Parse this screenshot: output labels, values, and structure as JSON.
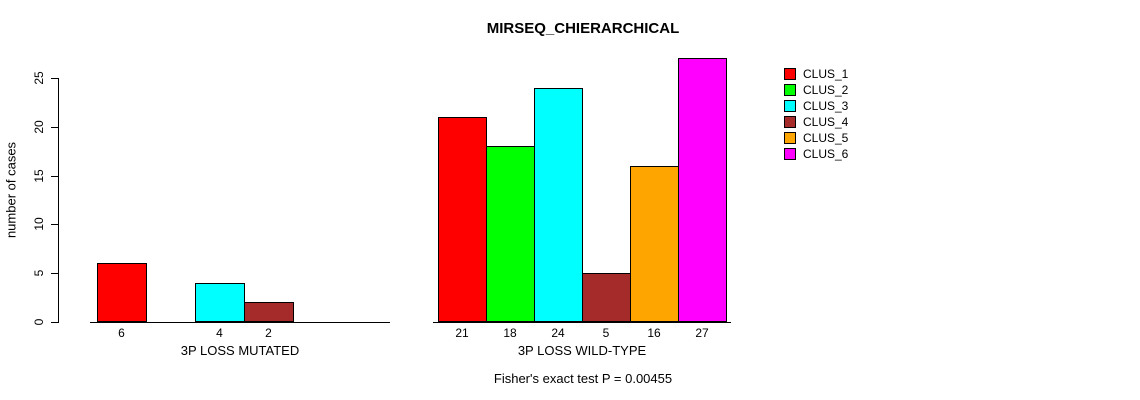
{
  "chart_data": {
    "type": "bar",
    "title": "MIRSEQ_CHIERARCHICAL",
    "ylabel": "number of cases",
    "xlabel": "",
    "ylim": [
      0,
      27
    ],
    "yticks": [
      0,
      5,
      10,
      15,
      20,
      25
    ],
    "grid": false,
    "legend_position": "top-right",
    "series": [
      "CLUS_1",
      "CLUS_2",
      "CLUS_3",
      "CLUS_4",
      "CLUS_5",
      "CLUS_6"
    ],
    "series_colors": [
      "#ff0000",
      "#00ff00",
      "#00ffff",
      "#a52a2a",
      "#ffa500",
      "#ff00ff"
    ],
    "groups": [
      {
        "label": "3P LOSS MUTATED",
        "values": [
          6,
          0,
          4,
          2,
          0,
          0
        ],
        "bar_labels": [
          "6",
          "",
          "4",
          "2",
          "",
          ""
        ]
      },
      {
        "label": "3P LOSS WILD-TYPE",
        "values": [
          21,
          18,
          24,
          5,
          16,
          27
        ],
        "bar_labels": [
          "21",
          "18",
          "24",
          "5",
          "16",
          "27"
        ]
      }
    ],
    "annotation": "Fisher's exact test P = 0.00455"
  },
  "colors": {
    "axis": "#000000",
    "text": "#000000",
    "background": "#ffffff"
  }
}
